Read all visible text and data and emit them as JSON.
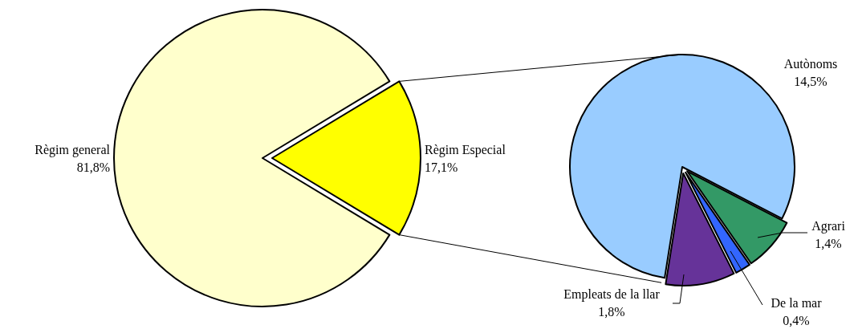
{
  "chart_data": [
    {
      "type": "pie",
      "categories": [
        "Règim general",
        "Règim Especial"
      ],
      "values": [
        81.8,
        17.1
      ],
      "colors": [
        "#ffffcc",
        "#ffff00"
      ],
      "value_labels": [
        "81,8%",
        "17,1%"
      ]
    },
    {
      "type": "pie",
      "categories": [
        "Autònoms",
        "Agrari",
        "De la mar",
        "Empleats de la llar"
      ],
      "values": [
        14.5,
        1.4,
        0.4,
        1.8
      ],
      "colors": [
        "#99ccff",
        "#339966",
        "#3366ff",
        "#663399"
      ],
      "value_labels": [
        "14,5%",
        "1,4%",
        "0,4%",
        "1,8%"
      ]
    }
  ]
}
